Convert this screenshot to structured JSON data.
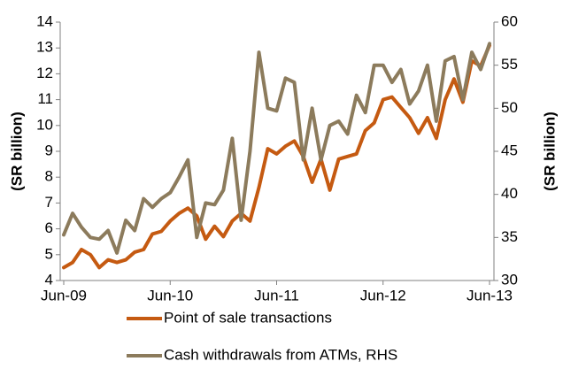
{
  "chart_data": {
    "type": "line",
    "y_label": "(SR billion)",
    "y2_label": "(SR billion)",
    "categories": [
      "Jun-09",
      null,
      null,
      null,
      null,
      null,
      null,
      null,
      null,
      null,
      null,
      null,
      "Jun-10",
      null,
      null,
      null,
      null,
      null,
      null,
      null,
      null,
      null,
      null,
      null,
      "Jun-11",
      null,
      null,
      null,
      null,
      null,
      null,
      null,
      null,
      null,
      null,
      null,
      "Jun-12",
      null,
      null,
      null,
      null,
      null,
      null,
      null,
      null,
      null,
      null,
      null,
      "Jun-13"
    ],
    "series": [
      {
        "name": "Point of sale transactions",
        "color": "#c55a11",
        "values": [
          4.5,
          4.7,
          5.2,
          5.0,
          4.5,
          4.8,
          4.7,
          4.8,
          5.1,
          5.2,
          5.8,
          5.9,
          6.3,
          6.6,
          6.8,
          6.5,
          5.6,
          6.1,
          5.7,
          6.3,
          6.6,
          6.3,
          7.6,
          9.1,
          8.9,
          9.2,
          9.4,
          8.8,
          7.8,
          8.7,
          7.5,
          8.7,
          8.8,
          8.9,
          9.8,
          10.1,
          11.0,
          11.1,
          10.7,
          10.3,
          9.7,
          10.3,
          9.5,
          11.0,
          11.8,
          10.9,
          12.5,
          12.3,
          13.1
        ]
      },
      {
        "name": "Cash withdrawals from ATMs, RHS",
        "color": "#8c7b5c",
        "axis": "y2",
        "values": [
          35.3,
          37.8,
          36.2,
          35.0,
          34.8,
          35.8,
          33.2,
          37.0,
          35.8,
          39.5,
          38.5,
          39.5,
          40.2,
          42.0,
          44.0,
          35.0,
          39.0,
          38.8,
          40.5,
          46.5,
          37.0,
          45.0,
          56.5,
          50.0,
          49.7,
          53.5,
          53.0,
          44.0,
          50.0,
          44.0,
          48.0,
          48.5,
          47.0,
          51.5,
          49.5,
          55.0,
          55.0,
          53.0,
          54.5,
          50.5,
          52.0,
          55.0,
          48.5,
          55.5,
          56.0,
          51.0,
          56.5,
          54.5,
          57.5
        ]
      }
    ],
    "ylim": [
      4,
      14
    ],
    "yticks": [
      4,
      5,
      6,
      7,
      8,
      9,
      10,
      11,
      12,
      13,
      14
    ],
    "y2lim": [
      30,
      60
    ],
    "y2ticks": [
      30,
      35,
      40,
      45,
      50,
      55,
      60
    ]
  }
}
